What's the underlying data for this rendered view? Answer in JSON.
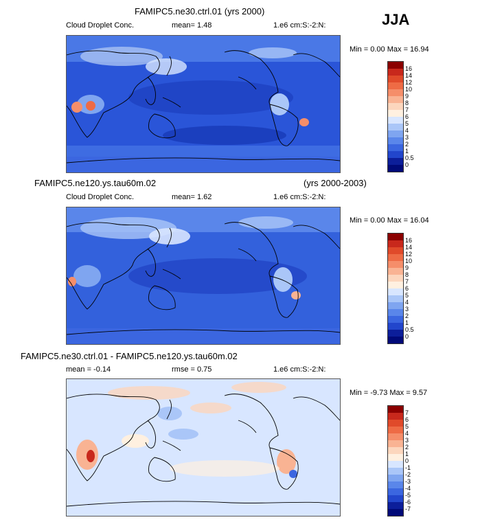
{
  "season": "JJA",
  "panels": [
    {
      "title": "FAMIPC5.ne30.ctrl.01 (yrs 2000)",
      "title_right": "",
      "field_label": "Cloud Droplet Conc.",
      "stat1": "mean=   1.48",
      "stat2": "",
      "units": "1.e6 cm:S:-2:N:",
      "minmax": "Min =   0.00 Max =  16.94",
      "levels": [
        "16",
        "14",
        "12",
        "10",
        "9",
        "8",
        "7",
        "6",
        "5",
        "4",
        "3",
        "2",
        "1",
        "0.5",
        "0"
      ],
      "colors": [
        "#8b0000",
        "#c8281c",
        "#e04a2a",
        "#ee6b45",
        "#f58e6a",
        "#f9b393",
        "#fcd6bd",
        "#fff0e0",
        "#d8e6ff",
        "#aac6f8",
        "#7fa5f0",
        "#5a86ea",
        "#3b66e0",
        "#2246cc",
        "#0c1e9a",
        "#000a78"
      ]
    },
    {
      "title": "FAMIPC5.ne120.ys.tau60m.02",
      "title_right": "(yrs 2000-2003)",
      "field_label": "Cloud Droplet Conc.",
      "stat1": "mean=   1.62",
      "stat2": "",
      "units": "1.e6 cm:S:-2:N:",
      "minmax": "Min =   0.00 Max =  16.04",
      "levels": [
        "16",
        "14",
        "12",
        "10",
        "9",
        "8",
        "7",
        "6",
        "5",
        "4",
        "3",
        "2",
        "1",
        "0.5",
        "0"
      ],
      "colors": [
        "#8b0000",
        "#c8281c",
        "#e04a2a",
        "#ee6b45",
        "#f58e6a",
        "#f9b393",
        "#fcd6bd",
        "#fff0e0",
        "#d8e6ff",
        "#aac6f8",
        "#7fa5f0",
        "#5a86ea",
        "#3b66e0",
        "#2246cc",
        "#0c1e9a",
        "#000a78"
      ]
    },
    {
      "title": "FAMIPC5.ne30.ctrl.01 - FAMIPC5.ne120.ys.tau60m.02",
      "title_right": "",
      "field_label": "",
      "stat1": "mean =  -0.14",
      "stat2": "rmse =   0.75",
      "units": "1.e6 cm:S:-2:N:",
      "minmax": "Min =  -9.73 Max =   9.57",
      "levels": [
        "7",
        "6",
        "5",
        "4",
        "3",
        "2",
        "1",
        "0",
        "-1",
        "-2",
        "-3",
        "-4",
        "-5",
        "-6",
        "-7"
      ],
      "colors": [
        "#8b0000",
        "#c8281c",
        "#e04a2a",
        "#ee6b45",
        "#f58e6a",
        "#f9b393",
        "#fcd6bd",
        "#fff0e0",
        "#d8e6ff",
        "#aac6f8",
        "#7fa5f0",
        "#5a86ea",
        "#3b66e0",
        "#2246cc",
        "#0c1e9a",
        "#000a78"
      ]
    }
  ]
}
